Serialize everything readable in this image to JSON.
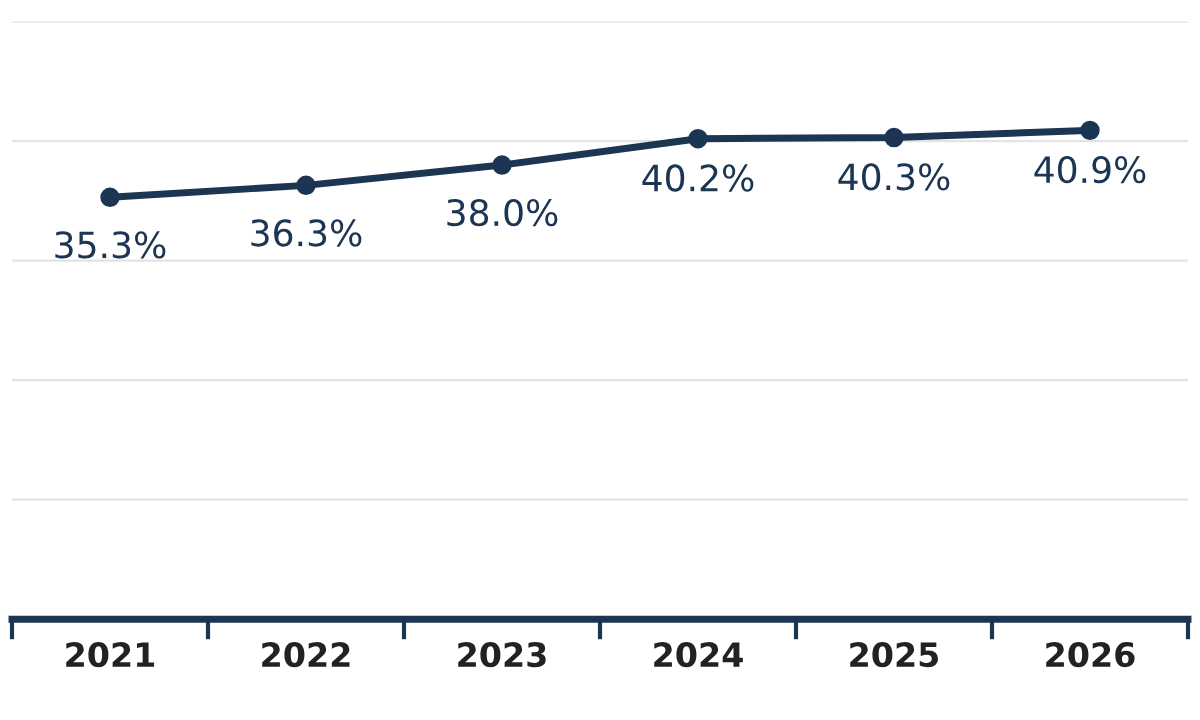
{
  "chart_data": {
    "type": "line",
    "categories": [
      "2021",
      "2022",
      "2023",
      "2024",
      "2025",
      "2026"
    ],
    "series": [
      {
        "color": "#1b3552",
        "values": [
          35.3,
          36.3,
          38.0,
          40.2,
          40.3,
          40.9
        ],
        "value_labels": [
          "35.3%",
          "36.3%",
          "38.0%",
          "40.2%",
          "40.3%",
          "40.9%"
        ]
      }
    ],
    "ylim": [
      0,
      50
    ],
    "yticks": [
      {
        "value": 0,
        "label": null
      },
      {
        "value": 10,
        "label": null
      },
      {
        "value": 20,
        "label": null
      },
      {
        "value": 30,
        "label": null
      },
      {
        "value": 40,
        "label": null
      },
      {
        "value": 50,
        "label": null
      }
    ],
    "tick_labels": "x",
    "grid": "y",
    "marker": "circle",
    "line_style": "solid"
  }
}
